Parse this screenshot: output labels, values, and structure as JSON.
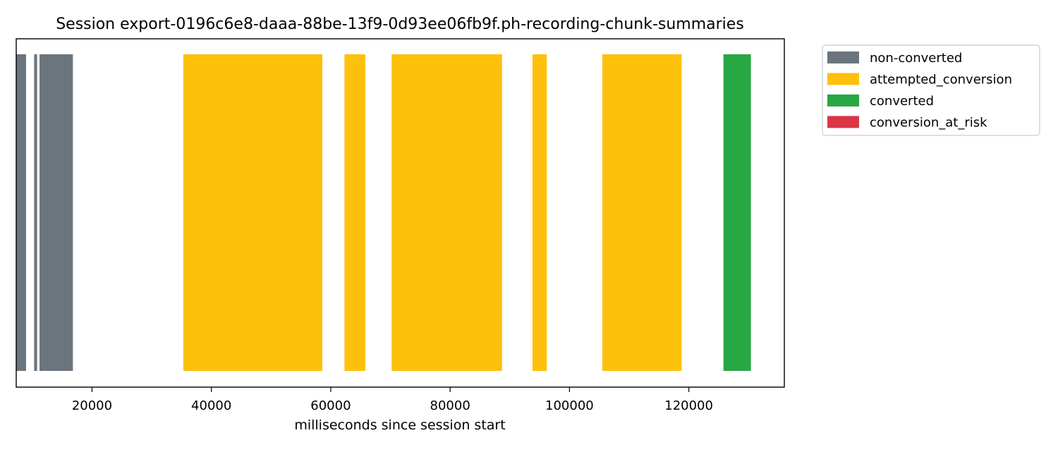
{
  "chart_data": {
    "type": "bar",
    "orientation": "horizontal-timeline",
    "title": "Session export-0196c6e8-daaa-88be-13f9-0d93ee06fb9f.ph-recording-chunk-summaries",
    "xlabel": "milliseconds since session start",
    "ylabel": "",
    "xlim": [
      7300,
      136000
    ],
    "x_ticks": [
      20000,
      40000,
      60000,
      80000,
      100000,
      120000
    ],
    "x_tick_labels": [
      "20000",
      "40000",
      "60000",
      "80000",
      "100000",
      "120000"
    ],
    "grid": false,
    "legend_position": "outside-top-right",
    "series": [
      {
        "name": "non-converted",
        "color": "#6c757d"
      },
      {
        "name": "attempted_conversion",
        "color": "#fdc10c"
      },
      {
        "name": "converted",
        "color": "#28a745"
      },
      {
        "name": "conversion_at_risk",
        "color": "#dc3545"
      }
    ],
    "segments": [
      {
        "series": "non-converted",
        "start": 7300,
        "end": 8950
      },
      {
        "series": "non-converted",
        "start": 10300,
        "end": 10800
      },
      {
        "series": "non-converted",
        "start": 11200,
        "end": 16800
      },
      {
        "series": "attempted_conversion",
        "start": 35300,
        "end": 58600
      },
      {
        "series": "attempted_conversion",
        "start": 62300,
        "end": 65800
      },
      {
        "series": "attempted_conversion",
        "start": 70200,
        "end": 88700
      },
      {
        "series": "attempted_conversion",
        "start": 93800,
        "end": 96200
      },
      {
        "series": "attempted_conversion",
        "start": 105500,
        "end": 118800
      },
      {
        "series": "converted",
        "start": 125800,
        "end": 130400
      }
    ]
  }
}
